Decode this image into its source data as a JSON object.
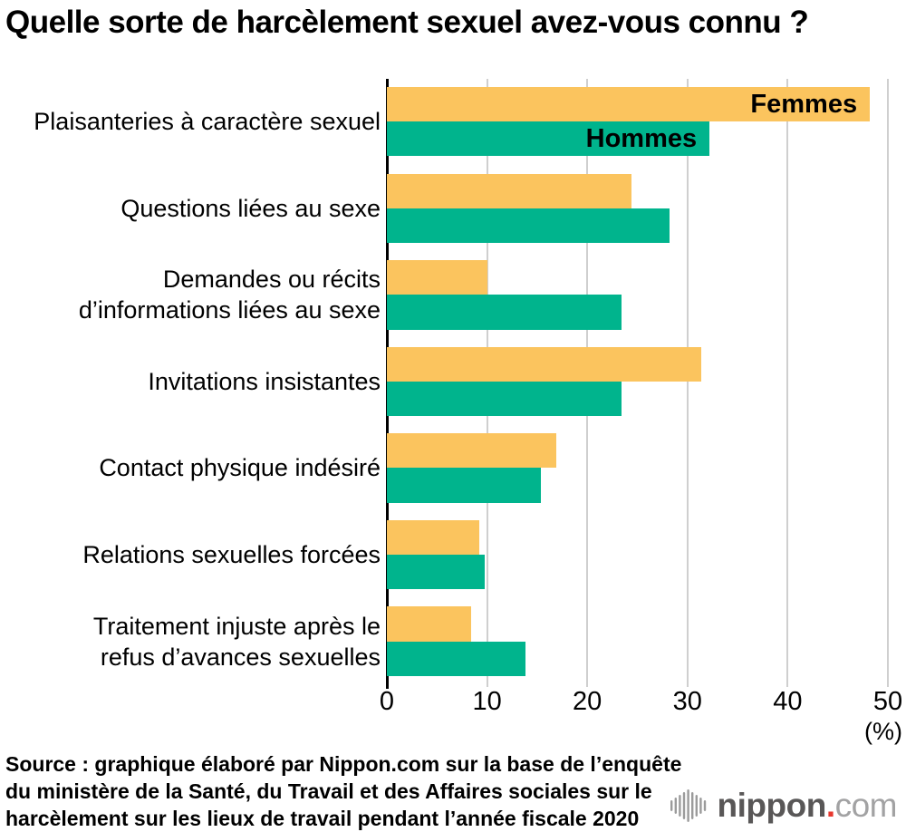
{
  "title": "Quelle sorte de harcèlement sexuel avez-vous connu ?",
  "chart_data": {
    "type": "bar",
    "orientation": "horizontal",
    "title": "Quelle sorte de harcèlement sexuel avez-vous connu ?",
    "categories": [
      "Plaisanteries à caractère sexuel",
      "Questions liées au sexe",
      "Demandes ou récits\nd’informations liées au sexe",
      "Invitations insistantes",
      "Contact physique indésiré",
      "Relations sexuelles forcées",
      "Traitement injuste après le\nrefus d’avances sexuelles"
    ],
    "series": [
      {
        "name": "Femmes",
        "color": "#FBC45E",
        "values": [
          48.2,
          24.4,
          10.0,
          31.4,
          16.9,
          9.2,
          8.4
        ]
      },
      {
        "name": "Hommes",
        "color": "#00B48D",
        "values": [
          32.2,
          28.2,
          23.4,
          23.4,
          15.4,
          9.8,
          13.8
        ]
      }
    ],
    "xlim": [
      0,
      50
    ],
    "xticks": [
      0,
      10,
      20,
      30,
      40,
      50
    ],
    "unit_label": "(%)",
    "grid": "vertical-gridlines",
    "gridline_color": "#cfcfcf",
    "axis_color": "#000000",
    "legend_position": "inside-first-bars"
  },
  "footer": {
    "source_lines": [
      "Source : graphique élaboré par Nippon.com sur la base de l’enquête",
      "du ministère de la Santé, du Travail et des Affaires sociales sur le",
      "harcèlement sur les lieux de travail pendant l’année fiscale 2020"
    ]
  },
  "logo": {
    "name_bold": "nippon",
    "dot": ".",
    "name_light": "com",
    "wave_color": "#9b9b9b"
  }
}
